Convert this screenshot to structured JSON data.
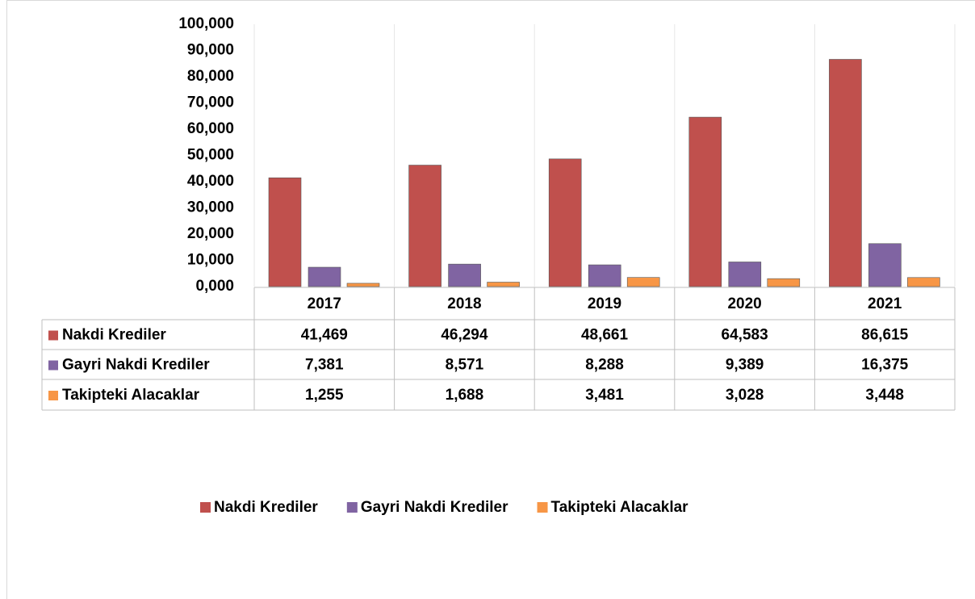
{
  "chart_data": {
    "type": "bar",
    "categories": [
      "2017",
      "2018",
      "2019",
      "2020",
      "2021"
    ],
    "series": [
      {
        "name": "Nakdi Krediler",
        "color": "#c0504d",
        "values": [
          41469,
          46294,
          48661,
          64583,
          86615
        ],
        "value_labels": [
          "41,469",
          "46,294",
          "48,661",
          "64,583",
          "86,615"
        ]
      },
      {
        "name": "Gayri Nakdi Krediler",
        "color": "#8064a2",
        "values": [
          7381,
          8571,
          8288,
          9389,
          16375
        ],
        "value_labels": [
          "7,381",
          "8,571",
          "8,288",
          "9,389",
          "16,375"
        ]
      },
      {
        "name": "Takipteki Alacaklar",
        "color": "#f79646",
        "values": [
          1255,
          1688,
          3481,
          3028,
          3448
        ],
        "value_labels": [
          "1,255",
          "1,688",
          "3,481",
          "3,028",
          "3,448"
        ]
      }
    ],
    "ylim": [
      0,
      100000
    ],
    "yticks": [
      {
        "value": 0,
        "label": "0,000"
      },
      {
        "value": 10000,
        "label": "10,000"
      },
      {
        "value": 20000,
        "label": "20,000"
      },
      {
        "value": 30000,
        "label": "30,000"
      },
      {
        "value": 40000,
        "label": "40,000"
      },
      {
        "value": 50000,
        "label": "50,000"
      },
      {
        "value": 60000,
        "label": "60,000"
      },
      {
        "value": 70000,
        "label": "70,000"
      },
      {
        "value": 80000,
        "label": "80,000"
      },
      {
        "value": 90000,
        "label": "90,000"
      },
      {
        "value": 100000,
        "label": "100,000"
      }
    ]
  }
}
